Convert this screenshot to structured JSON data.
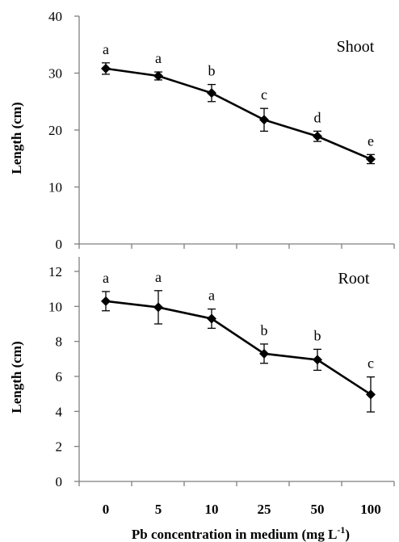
{
  "chart_data": [
    {
      "type": "line",
      "panel_label": "Shoot",
      "ylabel": "Length (cm)",
      "ylim": [
        0,
        40
      ],
      "yticks": [
        0,
        10,
        20,
        30,
        40
      ],
      "categories": [
        "0",
        "5",
        "10",
        "25",
        "50",
        "100"
      ],
      "values": [
        30.8,
        29.5,
        26.5,
        21.8,
        18.9,
        14.9
      ],
      "errors": [
        1.0,
        0.7,
        1.5,
        2.0,
        0.9,
        0.8
      ],
      "letters": [
        "a",
        "a",
        "b",
        "c",
        "d",
        "e"
      ]
    },
    {
      "type": "line",
      "panel_label": "Root",
      "ylabel": "Length (cm)",
      "xlabel": "Pb concentration in medium (mg L",
      "xlabel_sup": "-1",
      "xlabel_end": ")",
      "ylim": [
        0,
        12
      ],
      "yticks": [
        0,
        2,
        4,
        6,
        8,
        10,
        12
      ],
      "categories": [
        "0",
        "5",
        "10",
        "25",
        "50",
        "100"
      ],
      "values": [
        10.3,
        9.95,
        9.3,
        7.3,
        6.95,
        4.97
      ],
      "errors": [
        0.55,
        0.95,
        0.55,
        0.55,
        0.6,
        1.0
      ],
      "letters": [
        "a",
        "a",
        "a",
        "b",
        "b",
        "c"
      ]
    }
  ],
  "colors": {
    "axis": "#7f7f7f",
    "series": "#000000"
  }
}
